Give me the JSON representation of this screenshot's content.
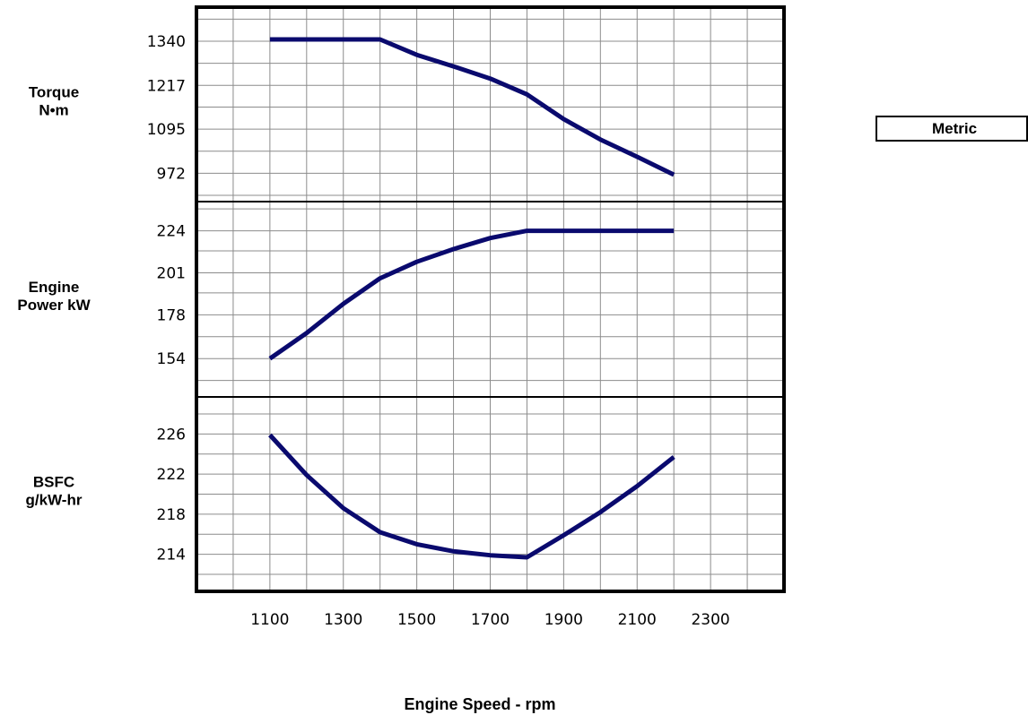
{
  "units_box": {
    "label": "Metric"
  },
  "colors": {
    "line": "#0a0a6e",
    "grid": "#8c8c8c",
    "frame": "#000000"
  },
  "chart_data": {
    "type": "line",
    "xlabel": "Engine Speed - rpm",
    "xlim": [
      900,
      2500
    ],
    "x_ticks": [
      1100,
      1300,
      1500,
      1700,
      1900,
      2100,
      2300
    ],
    "grid": true,
    "panels": [
      {
        "ylabel_lines": [
          "Torque",
          "N•m"
        ],
        "ylim": [
          893,
          1435
        ],
        "y_ticks": [
          972,
          1095,
          1217,
          1340
        ],
        "series": [
          {
            "x": [
              1100,
              1200,
              1300,
              1400,
              1500,
              1600,
              1700,
              1800,
              1900,
              2000,
              2100,
              2200
            ],
            "values": [
              1345,
              1345,
              1345,
              1345,
              1302,
              1270,
              1236,
              1192,
              1123,
              1066,
              1018,
              968
            ]
          }
        ]
      },
      {
        "ylabel_lines": [
          "Engine",
          "Power kW"
        ],
        "ylim": [
          133,
          240
        ],
        "y_ticks": [
          154,
          178,
          201,
          224
        ],
        "series": [
          {
            "x": [
              1100,
              1200,
              1300,
              1400,
              1500,
              1600,
              1700,
              1800,
              1900,
              2000,
              2100,
              2200
            ],
            "values": [
              154,
              168,
              184,
              198,
              207,
              214,
              220,
              224,
              224,
              224,
              224,
              224
            ]
          }
        ]
      },
      {
        "ylabel_lines": [
          "BSFC",
          "g/kW-hr"
        ],
        "ylim": [
          210.3,
          229.7
        ],
        "y_ticks": [
          214,
          218,
          222,
          226
        ],
        "series": [
          {
            "x": [
              1100,
              1200,
              1300,
              1400,
              1500,
              1600,
              1700,
              1800,
              1900,
              2000,
              2100,
              2200
            ],
            "values": [
              225.9,
              221.9,
              218.6,
              216.2,
              215.0,
              214.3,
              213.9,
              213.7,
              215.9,
              218.2,
              220.8,
              223.7
            ]
          }
        ]
      }
    ]
  }
}
